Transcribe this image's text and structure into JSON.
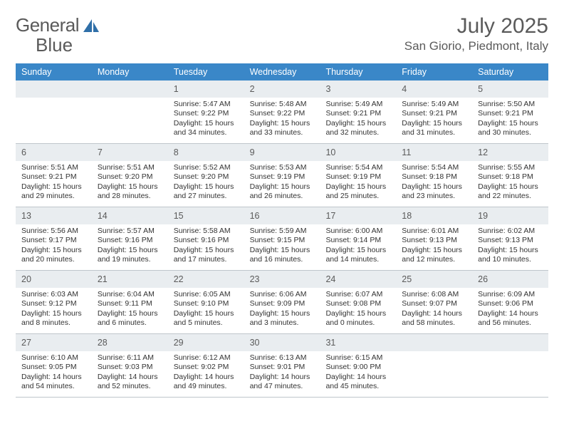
{
  "logo": {
    "text1": "General",
    "text2": "Blue"
  },
  "colors": {
    "header_bg": "#3a87c8",
    "header_text": "#ffffff",
    "daynum_bg": "#e9edf0",
    "text_muted": "#5a5a5a",
    "body_text": "#333333",
    "border": "#bfc6cc",
    "logo_accent": "#2f6fa8"
  },
  "title": "July 2025",
  "location": "San Giorio, Piedmont, Italy",
  "day_names": [
    "Sunday",
    "Monday",
    "Tuesday",
    "Wednesday",
    "Thursday",
    "Friday",
    "Saturday"
  ],
  "weeks": [
    [
      {
        "blank": true
      },
      {
        "blank": true
      },
      {
        "n": "1",
        "sunrise": "5:47 AM",
        "sunset": "9:22 PM",
        "daylight": "15 hours and 34 minutes."
      },
      {
        "n": "2",
        "sunrise": "5:48 AM",
        "sunset": "9:22 PM",
        "daylight": "15 hours and 33 minutes."
      },
      {
        "n": "3",
        "sunrise": "5:49 AM",
        "sunset": "9:21 PM",
        "daylight": "15 hours and 32 minutes."
      },
      {
        "n": "4",
        "sunrise": "5:49 AM",
        "sunset": "9:21 PM",
        "daylight": "15 hours and 31 minutes."
      },
      {
        "n": "5",
        "sunrise": "5:50 AM",
        "sunset": "9:21 PM",
        "daylight": "15 hours and 30 minutes."
      }
    ],
    [
      {
        "n": "6",
        "sunrise": "5:51 AM",
        "sunset": "9:21 PM",
        "daylight": "15 hours and 29 minutes."
      },
      {
        "n": "7",
        "sunrise": "5:51 AM",
        "sunset": "9:20 PM",
        "daylight": "15 hours and 28 minutes."
      },
      {
        "n": "8",
        "sunrise": "5:52 AM",
        "sunset": "9:20 PM",
        "daylight": "15 hours and 27 minutes."
      },
      {
        "n": "9",
        "sunrise": "5:53 AM",
        "sunset": "9:19 PM",
        "daylight": "15 hours and 26 minutes."
      },
      {
        "n": "10",
        "sunrise": "5:54 AM",
        "sunset": "9:19 PM",
        "daylight": "15 hours and 25 minutes."
      },
      {
        "n": "11",
        "sunrise": "5:54 AM",
        "sunset": "9:18 PM",
        "daylight": "15 hours and 23 minutes."
      },
      {
        "n": "12",
        "sunrise": "5:55 AM",
        "sunset": "9:18 PM",
        "daylight": "15 hours and 22 minutes."
      }
    ],
    [
      {
        "n": "13",
        "sunrise": "5:56 AM",
        "sunset": "9:17 PM",
        "daylight": "15 hours and 20 minutes."
      },
      {
        "n": "14",
        "sunrise": "5:57 AM",
        "sunset": "9:16 PM",
        "daylight": "15 hours and 19 minutes."
      },
      {
        "n": "15",
        "sunrise": "5:58 AM",
        "sunset": "9:16 PM",
        "daylight": "15 hours and 17 minutes."
      },
      {
        "n": "16",
        "sunrise": "5:59 AM",
        "sunset": "9:15 PM",
        "daylight": "15 hours and 16 minutes."
      },
      {
        "n": "17",
        "sunrise": "6:00 AM",
        "sunset": "9:14 PM",
        "daylight": "15 hours and 14 minutes."
      },
      {
        "n": "18",
        "sunrise": "6:01 AM",
        "sunset": "9:13 PM",
        "daylight": "15 hours and 12 minutes."
      },
      {
        "n": "19",
        "sunrise": "6:02 AM",
        "sunset": "9:13 PM",
        "daylight": "15 hours and 10 minutes."
      }
    ],
    [
      {
        "n": "20",
        "sunrise": "6:03 AM",
        "sunset": "9:12 PM",
        "daylight": "15 hours and 8 minutes."
      },
      {
        "n": "21",
        "sunrise": "6:04 AM",
        "sunset": "9:11 PM",
        "daylight": "15 hours and 6 minutes."
      },
      {
        "n": "22",
        "sunrise": "6:05 AM",
        "sunset": "9:10 PM",
        "daylight": "15 hours and 5 minutes."
      },
      {
        "n": "23",
        "sunrise": "6:06 AM",
        "sunset": "9:09 PM",
        "daylight": "15 hours and 3 minutes."
      },
      {
        "n": "24",
        "sunrise": "6:07 AM",
        "sunset": "9:08 PM",
        "daylight": "15 hours and 0 minutes."
      },
      {
        "n": "25",
        "sunrise": "6:08 AM",
        "sunset": "9:07 PM",
        "daylight": "14 hours and 58 minutes."
      },
      {
        "n": "26",
        "sunrise": "6:09 AM",
        "sunset": "9:06 PM",
        "daylight": "14 hours and 56 minutes."
      }
    ],
    [
      {
        "n": "27",
        "sunrise": "6:10 AM",
        "sunset": "9:05 PM",
        "daylight": "14 hours and 54 minutes."
      },
      {
        "n": "28",
        "sunrise": "6:11 AM",
        "sunset": "9:03 PM",
        "daylight": "14 hours and 52 minutes."
      },
      {
        "n": "29",
        "sunrise": "6:12 AM",
        "sunset": "9:02 PM",
        "daylight": "14 hours and 49 minutes."
      },
      {
        "n": "30",
        "sunrise": "6:13 AM",
        "sunset": "9:01 PM",
        "daylight": "14 hours and 47 minutes."
      },
      {
        "n": "31",
        "sunrise": "6:15 AM",
        "sunset": "9:00 PM",
        "daylight": "14 hours and 45 minutes."
      },
      {
        "blank": true
      },
      {
        "blank": true
      }
    ]
  ],
  "labels": {
    "sunrise": "Sunrise:",
    "sunset": "Sunset:",
    "daylight": "Daylight:"
  }
}
